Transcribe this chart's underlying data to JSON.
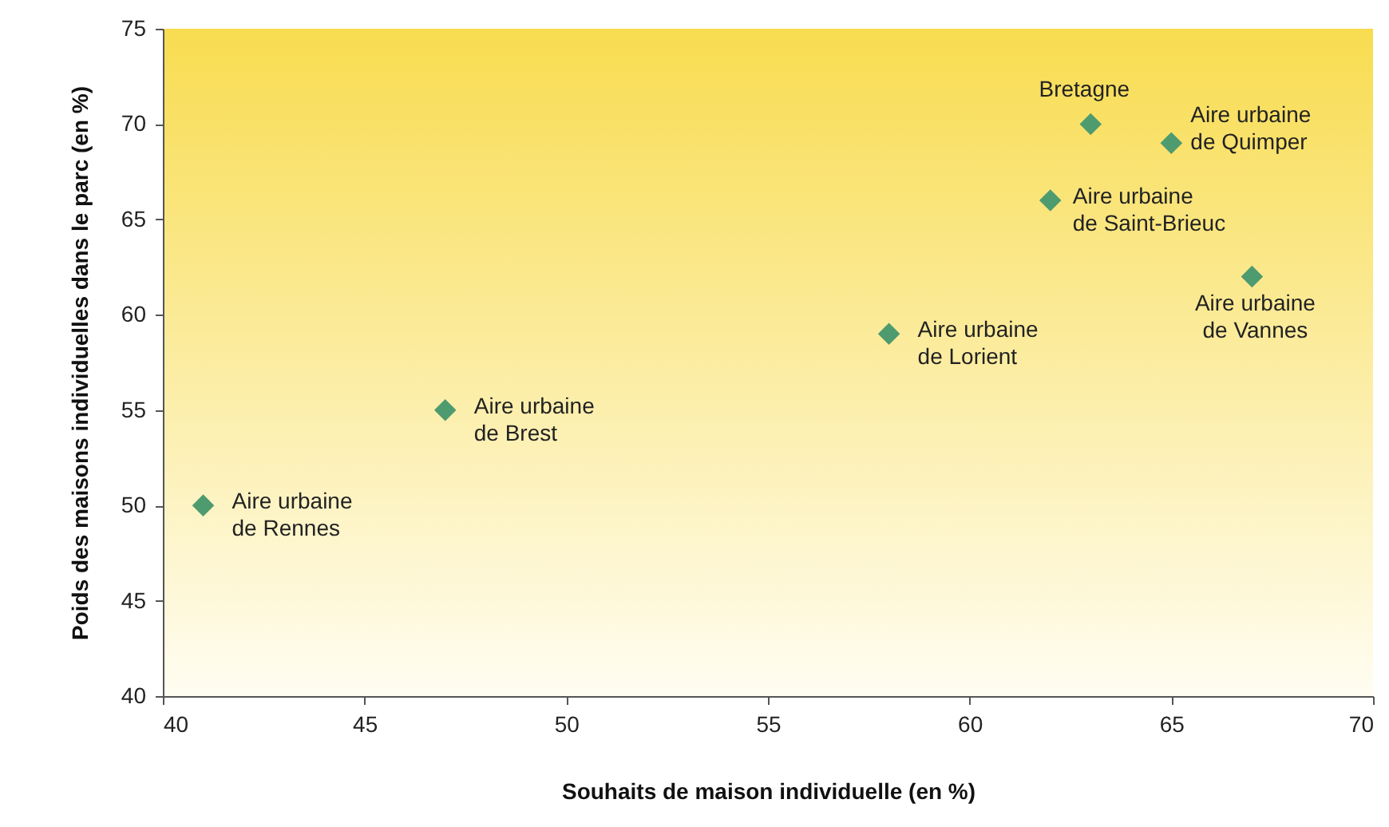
{
  "chart_data": {
    "type": "scatter",
    "xlabel": "Souhaits de maison individuelle (en %)",
    "ylabel": "Poids des maisons individuelles dans le parc (en %)",
    "x": [
      41,
      47,
      58,
      62,
      63,
      65,
      67
    ],
    "series": [
      {
        "color": "#4e9b70",
        "values": [
          50,
          55,
          59,
          66,
          70,
          69,
          62
        ]
      }
    ],
    "marker": "diamond",
    "xlim": [
      40,
      70
    ],
    "xticks": [
      40,
      45,
      50,
      55,
      60,
      65,
      70
    ],
    "ylim": [
      40,
      75
    ],
    "yticks": [
      40,
      45,
      50,
      55,
      60,
      65,
      70,
      75
    ],
    "grid": false,
    "annotations": [
      {
        "text": "Aire urbaine\nde Rennes",
        "x": 41,
        "y": 50
      },
      {
        "text": "Aire urbaine\nde Brest",
        "x": 47,
        "y": 55
      },
      {
        "text": "Aire urbaine\nde Lorient",
        "x": 58,
        "y": 59
      },
      {
        "text": "Aire urbaine\nde Saint-Brieuc",
        "x": 62,
        "y": 66
      },
      {
        "text": "Bretagne",
        "x": 63,
        "y": 70
      },
      {
        "text": "Aire urbaine\nde Quimper",
        "x": 65,
        "y": 69
      },
      {
        "text": "Aire urbaine\nde Vannes",
        "x": 67,
        "y": 62
      }
    ]
  }
}
